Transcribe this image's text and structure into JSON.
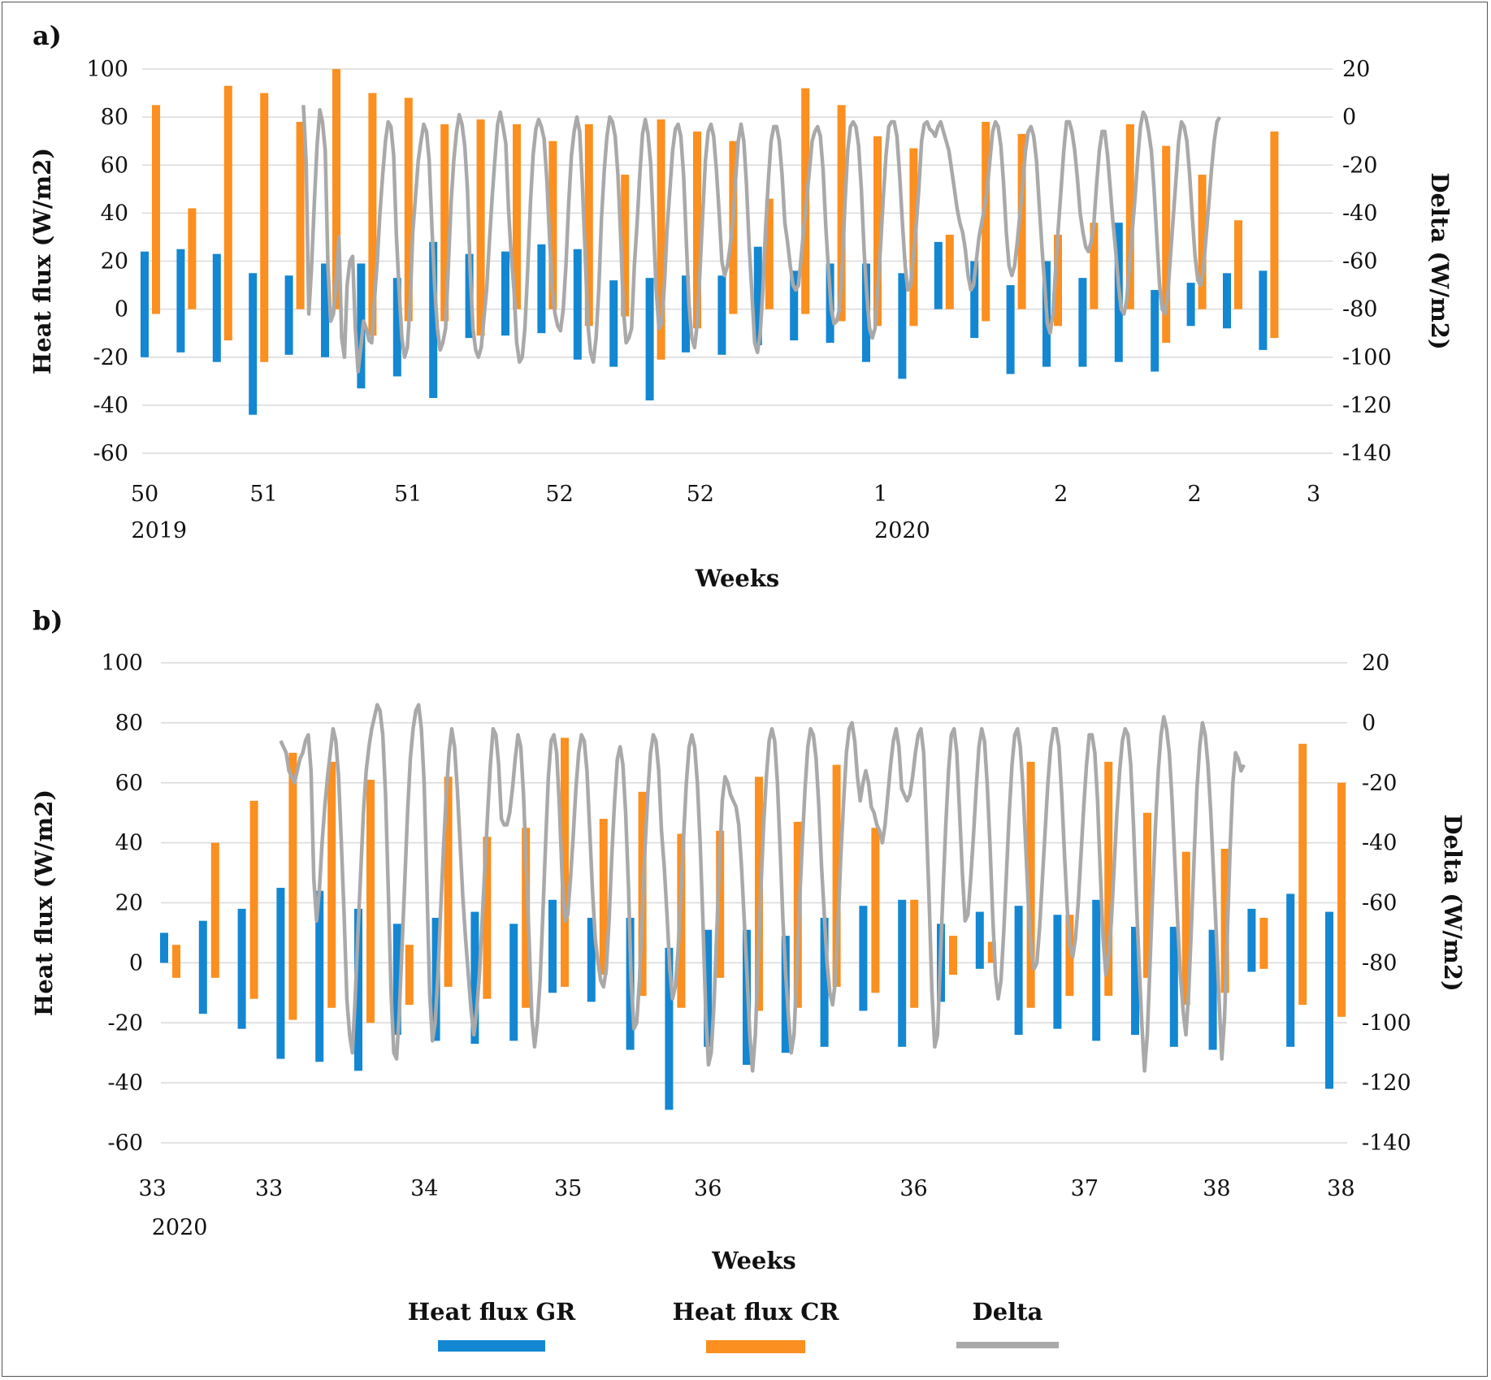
{
  "colors": {
    "gr": "#1387d2",
    "cr": "#fb8f1f",
    "delta": "#a9a9a9",
    "grid": "#dadada"
  },
  "legend": [
    {
      "key": "gr",
      "label": "Heat flux GR"
    },
    {
      "key": "cr",
      "label": "Heat flux CR"
    },
    {
      "key": "delta",
      "label": "Delta"
    }
  ],
  "chart_data": [
    {
      "panel_label": "a)",
      "type": "bar+line",
      "xlabel": "Weeks",
      "ylabel": "Heat flux (W/m2)",
      "y2label": "Delta (W/m2)",
      "ylim": [
        -60,
        100
      ],
      "y_ticks": [
        100,
        80,
        60,
        40,
        20,
        0,
        -20,
        -40,
        -60
      ],
      "y2lim": [
        -140,
        20
      ],
      "y2_ticks": [
        20,
        0,
        -20,
        -40,
        -60,
        -80,
        -100,
        -120,
        -140
      ],
      "grid": true,
      "n_days": 31,
      "x_week_labels": [
        {
          "day": 0,
          "label": "50"
        },
        {
          "day": 3.3,
          "label": "51"
        },
        {
          "day": 7.3,
          "label": "51"
        },
        {
          "day": 11.5,
          "label": "52"
        },
        {
          "day": 15.4,
          "label": "52"
        },
        {
          "day": 20.4,
          "label": "1"
        },
        {
          "day": 25.4,
          "label": "2"
        },
        {
          "day": 29.1,
          "label": "2"
        },
        {
          "day": 32.4,
          "label": "3"
        }
      ],
      "x_year_labels": [
        {
          "day": 0.4,
          "label": "2019"
        },
        {
          "day": 21.0,
          "label": "2020"
        }
      ],
      "gr": [
        [
          -20,
          24
        ],
        [
          -18,
          25
        ],
        [
          -22,
          23
        ],
        [
          -44,
          15
        ],
        [
          -19,
          14
        ],
        [
          -20,
          19
        ],
        [
          -33,
          19
        ],
        [
          -28,
          13
        ],
        [
          -37,
          28
        ],
        [
          -12,
          23
        ],
        [
          -11,
          24
        ],
        [
          -10,
          27
        ],
        [
          -21,
          25
        ],
        [
          -24,
          12
        ],
        [
          -38,
          13
        ],
        [
          -18,
          14
        ],
        [
          -19,
          14
        ],
        [
          -15,
          26
        ],
        [
          -13,
          16
        ],
        [
          -14,
          19
        ],
        [
          -22,
          19
        ],
        [
          -29,
          15
        ],
        [
          0,
          28
        ],
        [
          -12,
          20
        ],
        [
          -27,
          10
        ],
        [
          -24,
          20
        ],
        [
          -24,
          13
        ],
        [
          -22,
          36
        ],
        [
          -26,
          8
        ],
        [
          -7,
          11
        ],
        [
          -8,
          15
        ],
        [
          -17,
          16
        ]
      ],
      "cr": [
        [
          -2,
          85
        ],
        [
          0,
          42
        ],
        [
          -13,
          93
        ],
        [
          -22,
          90
        ],
        [
          0,
          78
        ],
        [
          0,
          100
        ],
        [
          -11,
          90
        ],
        [
          -5,
          88
        ],
        [
          -5,
          77
        ],
        [
          -11,
          79
        ],
        [
          0,
          77
        ],
        [
          0,
          70
        ],
        [
          -7,
          77
        ],
        [
          -3,
          56
        ],
        [
          -21,
          79
        ],
        [
          -8,
          74
        ],
        [
          -2,
          70
        ],
        [
          0,
          46
        ],
        [
          -2,
          92
        ],
        [
          -5,
          85
        ],
        [
          -7,
          72
        ],
        [
          -7,
          67
        ],
        [
          0,
          31
        ],
        [
          -5,
          78
        ],
        [
          0,
          73
        ],
        [
          -7,
          31
        ],
        [
          0,
          36
        ],
        [
          0,
          77
        ],
        [
          -14,
          68
        ],
        [
          0,
          56
        ],
        [
          0,
          37
        ],
        [
          -12,
          74
        ]
      ],
      "delta": [
        5,
        -18,
        -82,
        -62,
        -36,
        -12,
        3,
        -2,
        -14,
        -63,
        -85,
        -82,
        -68,
        -50,
        -92,
        -100,
        -70,
        -60,
        -58,
        -88,
        -106,
        -96,
        -85,
        -88,
        -93,
        -94,
        -76,
        -60,
        -40,
        -24,
        -10,
        -2,
        -4,
        -16,
        -49,
        -72,
        -92,
        -100,
        -96,
        -78,
        -48,
        -33,
        -18,
        -10,
        -3,
        -6,
        -18,
        -46,
        -70,
        -88,
        -97,
        -94,
        -88,
        -62,
        -36,
        -18,
        -6,
        1,
        -3,
        -12,
        -30,
        -64,
        -88,
        -97,
        -100,
        -96,
        -84,
        -72,
        -52,
        -34,
        -18,
        -3,
        2,
        -4,
        -11,
        -38,
        -58,
        -72,
        -94,
        -102,
        -100,
        -88,
        -64,
        -36,
        -16,
        -5,
        -1,
        -4,
        -9,
        -26,
        -50,
        -72,
        -82,
        -87,
        -89,
        -80,
        -62,
        -36,
        -16,
        -6,
        0,
        -6,
        -28,
        -56,
        -86,
        -98,
        -102,
        -92,
        -72,
        -42,
        -22,
        -8,
        0,
        -2,
        -8,
        -24,
        -50,
        -80,
        -94,
        -92,
        -88,
        -62,
        -44,
        -24,
        -7,
        -1,
        -7,
        -20,
        -46,
        -72,
        -88,
        -86,
        -70,
        -46,
        -30,
        -14,
        -5,
        -3,
        -8,
        -24,
        -52,
        -78,
        -92,
        -96,
        -86,
        -64,
        -40,
        -18,
        -6,
        -3,
        -8,
        -22,
        -40,
        -60,
        -66,
        -62,
        -54,
        -44,
        -26,
        -10,
        -3,
        -10,
        -28,
        -54,
        -74,
        -94,
        -98,
        -90,
        -72,
        -46,
        -26,
        -10,
        -4,
        -4,
        -10,
        -24,
        -44,
        -52,
        -62,
        -70,
        -72,
        -70,
        -58,
        -46,
        -34,
        -22,
        -10,
        -6,
        -4,
        -8,
        -22,
        -46,
        -64,
        -80,
        -86,
        -85,
        -80,
        -62,
        -36,
        -14,
        -4,
        -2,
        -4,
        -12,
        -30,
        -56,
        -74,
        -88,
        -92,
        -88,
        -72,
        -54,
        -34,
        -16,
        -4,
        -2,
        -2,
        -8,
        -24,
        -44,
        -62,
        -72,
        -70,
        -58,
        -46,
        -30,
        -10,
        -3,
        -2,
        -5,
        -6,
        -8,
        -4,
        -2,
        -6,
        -10,
        -14,
        -22,
        -30,
        -38,
        -44,
        -48,
        -55,
        -66,
        -72,
        -70,
        -60,
        -50,
        -44,
        -38,
        -30,
        -18,
        -6,
        -2,
        -4,
        -12,
        -28,
        -48,
        -62,
        -66,
        -62,
        -52,
        -40,
        -28,
        -14,
        -6,
        -4,
        -8,
        -18,
        -36,
        -54,
        -70,
        -86,
        -90,
        -82,
        -64,
        -46,
        -30,
        -14,
        -2,
        -2,
        -6,
        -14,
        -26,
        -40,
        -48,
        -54,
        -56,
        -52,
        -44,
        -28,
        -14,
        -6,
        -6,
        -16,
        -30,
        -44,
        -56,
        -70,
        -80,
        -82,
        -76,
        -62,
        -48,
        -34,
        -18,
        -4,
        2,
        0,
        -6,
        -14,
        -30,
        -50,
        -70,
        -80,
        -82,
        -74,
        -58,
        -42,
        -26,
        -10,
        -2,
        -4,
        -10,
        -24,
        -42,
        -58,
        -68,
        -70,
        -64,
        -50,
        -36,
        -22,
        -10,
        -2,
        0
      ]
    },
    {
      "panel_label": "b)",
      "type": "bar+line",
      "xlabel": "Weeks",
      "ylabel": "Heat flux (W/m2)",
      "y2label": "Delta (W/m2)",
      "ylim": [
        -60,
        100
      ],
      "y_ticks": [
        100,
        80,
        60,
        40,
        20,
        0,
        -20,
        -40,
        -60
      ],
      "y2lim": [
        -140,
        20
      ],
      "y2_ticks": [
        20,
        0,
        -20,
        -40,
        -60,
        -80,
        -100,
        -120,
        -140
      ],
      "grid": true,
      "n_days": 30,
      "x_week_labels": [
        {
          "day": -0.3,
          "label": "33"
        },
        {
          "day": 2.7,
          "label": "33"
        },
        {
          "day": 6.7,
          "label": "34"
        },
        {
          "day": 10.4,
          "label": "35"
        },
        {
          "day": 14,
          "label": "36"
        },
        {
          "day": 19.3,
          "label": "36"
        },
        {
          "day": 23.7,
          "label": "37"
        },
        {
          "day": 27.1,
          "label": "38"
        },
        {
          "day": 30.3,
          "label": "38"
        }
      ],
      "x_year_labels": [
        {
          "day": 0.4,
          "label": "2020"
        }
      ],
      "gr": [
        [
          0,
          10
        ],
        [
          -17,
          14
        ],
        [
          -22,
          18
        ],
        [
          -32,
          25
        ],
        [
          -33,
          24
        ],
        [
          -36,
          18
        ],
        [
          -24,
          13
        ],
        [
          -26,
          15
        ],
        [
          -27,
          17
        ],
        [
          -26,
          13
        ],
        [
          -10,
          21
        ],
        [
          -13,
          15
        ],
        [
          -29,
          15
        ],
        [
          -49,
          5
        ],
        [
          -28,
          11
        ],
        [
          -34,
          11
        ],
        [
          -30,
          9
        ],
        [
          -28,
          15
        ],
        [
          -16,
          19
        ],
        [
          -28,
          21
        ],
        [
          -13,
          13
        ],
        [
          -2,
          17
        ],
        [
          -24,
          19
        ],
        [
          -22,
          16
        ],
        [
          -26,
          21
        ],
        [
          -24,
          12
        ],
        [
          -28,
          12
        ],
        [
          -29,
          11
        ],
        [
          -3,
          18
        ],
        [
          -28,
          23
        ],
        [
          -42,
          17
        ]
      ],
      "cr": [
        [
          -5,
          6
        ],
        [
          -5,
          40
        ],
        [
          -12,
          54
        ],
        [
          -19,
          70
        ],
        [
          -15,
          67
        ],
        [
          -20,
          61
        ],
        [
          -14,
          6
        ],
        [
          -8,
          62
        ],
        [
          -12,
          42
        ],
        [
          -15,
          45
        ],
        [
          -8,
          75
        ],
        [
          -4,
          48
        ],
        [
          -11,
          57
        ],
        [
          -15,
          43
        ],
        [
          -5,
          44
        ],
        [
          -16,
          62
        ],
        [
          -15,
          47
        ],
        [
          -8,
          66
        ],
        [
          -10,
          45
        ],
        [
          -15,
          21
        ],
        [
          -4,
          9
        ],
        [
          0,
          7
        ],
        [
          -15,
          67
        ],
        [
          -11,
          16
        ],
        [
          -11,
          67
        ],
        [
          -5,
          50
        ],
        [
          -14,
          37
        ],
        [
          -10,
          38
        ],
        [
          -2,
          15
        ],
        [
          -14,
          73
        ],
        [
          -18,
          60
        ]
      ],
      "delta": [
        -6,
        -8,
        -10,
        -16,
        -18,
        -20,
        -16,
        -12,
        -10,
        -6,
        -4,
        -16,
        -52,
        -66,
        -56,
        -40,
        -28,
        -18,
        -10,
        -2,
        -6,
        -18,
        -40,
        -64,
        -92,
        -104,
        -110,
        -92,
        -70,
        -50,
        -30,
        -16,
        -8,
        -2,
        2,
        6,
        4,
        -4,
        -24,
        -56,
        -90,
        -110,
        -112,
        -96,
        -74,
        -52,
        -30,
        -12,
        -2,
        4,
        6,
        -2,
        -20,
        -54,
        -90,
        -106,
        -100,
        -84,
        -62,
        -42,
        -24,
        -10,
        -2,
        -8,
        -22,
        -40,
        -58,
        -72,
        -84,
        -96,
        -104,
        -96,
        -84,
        -66,
        -48,
        -30,
        -14,
        -2,
        -4,
        -14,
        -32,
        -34,
        -34,
        -30,
        -22,
        -12,
        -4,
        -8,
        -24,
        -48,
        -72,
        -98,
        -108,
        -100,
        -86,
        -64,
        -40,
        -18,
        -6,
        -4,
        -10,
        -28,
        -52,
        -66,
        -64,
        -52,
        -38,
        -22,
        -10,
        -4,
        -6,
        -16,
        -36,
        -56,
        -72,
        -80,
        -86,
        -88,
        -82,
        -66,
        -44,
        -26,
        -12,
        -8,
        -14,
        -30,
        -54,
        -86,
        -102,
        -100,
        -86,
        -64,
        -42,
        -24,
        -10,
        -4,
        -6,
        -16,
        -36,
        -48,
        -64,
        -82,
        -92,
        -88,
        -76,
        -58,
        -38,
        -20,
        -8,
        -4,
        -8,
        -20,
        -40,
        -66,
        -96,
        -114,
        -110,
        -94,
        -70,
        -46,
        -26,
        -18,
        -20,
        -24,
        -26,
        -28,
        -34,
        -48,
        -66,
        -84,
        -104,
        -116,
        -104,
        -80,
        -56,
        -34,
        -18,
        -6,
        -2,
        -6,
        -20,
        -42,
        -66,
        -84,
        -98,
        -110,
        -104,
        -84,
        -60,
        -40,
        -22,
        -8,
        -2,
        -4,
        -12,
        -28,
        -48,
        -64,
        -80,
        -90,
        -94,
        -86,
        -66,
        -44,
        -26,
        -10,
        -2,
        0,
        -6,
        -18,
        -26,
        -20,
        -16,
        -20,
        -28,
        -30,
        -34,
        -36,
        -40,
        -34,
        -24,
        -14,
        -6,
        -2,
        -8,
        -22,
        -24,
        -26,
        -24,
        -18,
        -10,
        -4,
        -2,
        -10,
        -34,
        -60,
        -90,
        -108,
        -104,
        -80,
        -56,
        -34,
        -16,
        -4,
        -2,
        -10,
        -30,
        -50,
        -66,
        -64,
        -52,
        -38,
        -22,
        -8,
        -2,
        -6,
        -20,
        -40,
        -64,
        -84,
        -92,
        -86,
        -70,
        -50,
        -30,
        -14,
        -4,
        -2,
        -8,
        -22,
        -42,
        -62,
        -76,
        -82,
        -80,
        -68,
        -52,
        -36,
        -20,
        -8,
        -2,
        -2,
        -8,
        -24,
        -44,
        -62,
        -74,
        -78,
        -72,
        -60,
        -44,
        -28,
        -14,
        -4,
        -4,
        -10,
        -26,
        -50,
        -72,
        -84,
        -78,
        -66,
        -48,
        -30,
        -16,
        -6,
        -2,
        -4,
        -14,
        -34,
        -58,
        -80,
        -100,
        -116,
        -104,
        -80,
        -56,
        -34,
        -16,
        -4,
        2,
        -2,
        -10,
        -26,
        -46,
        -66,
        -84,
        -96,
        -104,
        -90,
        -68,
        -44,
        -22,
        -8,
        0,
        -4,
        -14,
        -30,
        -50,
        -70,
        -92,
        -112,
        -98,
        -70,
        -42,
        -20,
        -10,
        -12,
        -16,
        -14
      ]
    }
  ]
}
